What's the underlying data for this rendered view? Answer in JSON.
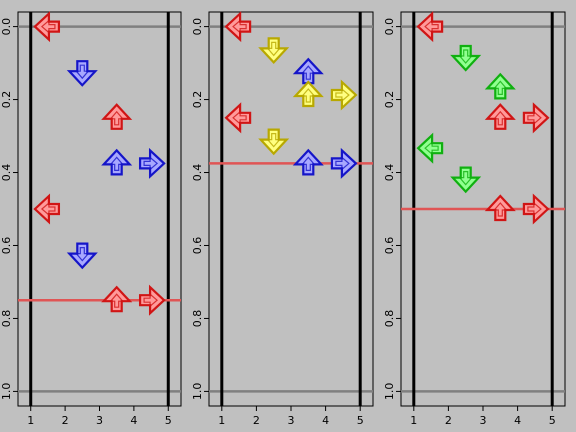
{
  "chart_data": [
    {
      "type": "scatter",
      "title": "",
      "xlabel": "",
      "ylabel": "",
      "xlim": [
        1,
        5
      ],
      "ylim": [
        1.0,
        0.0
      ],
      "x_ticks": [
        1,
        2,
        3,
        4,
        5
      ],
      "y_ticks": [
        0.0,
        0.2,
        0.4,
        0.6,
        0.8,
        1.0
      ],
      "marker_line": 0.75,
      "arrows": [
        {
          "x": 1.5,
          "y": 0.0,
          "dir": "left",
          "color": "red"
        },
        {
          "x": 2.5,
          "y": 0.125,
          "dir": "down",
          "color": "blue"
        },
        {
          "x": 3.5,
          "y": 0.25,
          "dir": "up",
          "color": "red"
        },
        {
          "x": 3.5,
          "y": 0.375,
          "dir": "up",
          "color": "blue"
        },
        {
          "x": 4.5,
          "y": 0.375,
          "dir": "right",
          "color": "blue"
        },
        {
          "x": 1.5,
          "y": 0.5,
          "dir": "left",
          "color": "red"
        },
        {
          "x": 2.5,
          "y": 0.625,
          "dir": "down",
          "color": "blue"
        },
        {
          "x": 3.5,
          "y": 0.75,
          "dir": "up",
          "color": "red"
        },
        {
          "x": 4.5,
          "y": 0.75,
          "dir": "right",
          "color": "red"
        }
      ]
    },
    {
      "type": "scatter",
      "title": "",
      "xlabel": "",
      "ylabel": "",
      "xlim": [
        1,
        5
      ],
      "ylim": [
        1.0,
        0.0
      ],
      "x_ticks": [
        1,
        2,
        3,
        4,
        5
      ],
      "y_ticks": [
        0.0,
        0.2,
        0.4,
        0.6,
        0.8,
        1.0
      ],
      "marker_line": 0.375,
      "arrows": [
        {
          "x": 1.5,
          "y": 0.0,
          "dir": "left",
          "color": "red"
        },
        {
          "x": 2.5,
          "y": 0.0625,
          "dir": "down",
          "color": "yellow"
        },
        {
          "x": 3.5,
          "y": 0.125,
          "dir": "up",
          "color": "blue"
        },
        {
          "x": 3.5,
          "y": 0.1875,
          "dir": "up",
          "color": "yellow"
        },
        {
          "x": 4.5,
          "y": 0.1875,
          "dir": "right",
          "color": "yellow"
        },
        {
          "x": 1.5,
          "y": 0.25,
          "dir": "left",
          "color": "red"
        },
        {
          "x": 2.5,
          "y": 0.3125,
          "dir": "down",
          "color": "yellow"
        },
        {
          "x": 3.5,
          "y": 0.375,
          "dir": "up",
          "color": "blue"
        },
        {
          "x": 4.5,
          "y": 0.375,
          "dir": "right",
          "color": "blue"
        }
      ]
    },
    {
      "type": "scatter",
      "title": "",
      "xlabel": "",
      "ylabel": "",
      "xlim": [
        1,
        5
      ],
      "ylim": [
        1.0,
        0.0
      ],
      "x_ticks": [
        1,
        2,
        3,
        4,
        5
      ],
      "y_ticks": [
        0.0,
        0.2,
        0.4,
        0.6,
        0.8,
        1.0
      ],
      "marker_line": 0.5,
      "arrows": [
        {
          "x": 1.5,
          "y": 0.0,
          "dir": "left",
          "color": "red"
        },
        {
          "x": 2.5,
          "y": 0.0833,
          "dir": "down",
          "color": "green"
        },
        {
          "x": 3.5,
          "y": 0.1667,
          "dir": "up",
          "color": "green"
        },
        {
          "x": 3.5,
          "y": 0.25,
          "dir": "up",
          "color": "red"
        },
        {
          "x": 4.5,
          "y": 0.25,
          "dir": "right",
          "color": "red"
        },
        {
          "x": 1.5,
          "y": 0.3333,
          "dir": "left",
          "color": "green"
        },
        {
          "x": 2.5,
          "y": 0.4167,
          "dir": "down",
          "color": "green"
        },
        {
          "x": 3.5,
          "y": 0.5,
          "dir": "up",
          "color": "red"
        },
        {
          "x": 4.5,
          "y": 0.5,
          "dir": "right",
          "color": "red"
        }
      ]
    }
  ],
  "colors": {
    "background": "#c0c0c0",
    "boundary_line": "#808080",
    "marker_line": "#e05555",
    "red": {
      "fill": "#ff9a9a",
      "stroke": "#d01515"
    },
    "blue": {
      "fill": "#a8a8ff",
      "stroke": "#1515c8"
    },
    "yellow": {
      "fill": "#ffff80",
      "stroke": "#b8a800"
    },
    "green": {
      "fill": "#90ff90",
      "stroke": "#10b010"
    }
  }
}
